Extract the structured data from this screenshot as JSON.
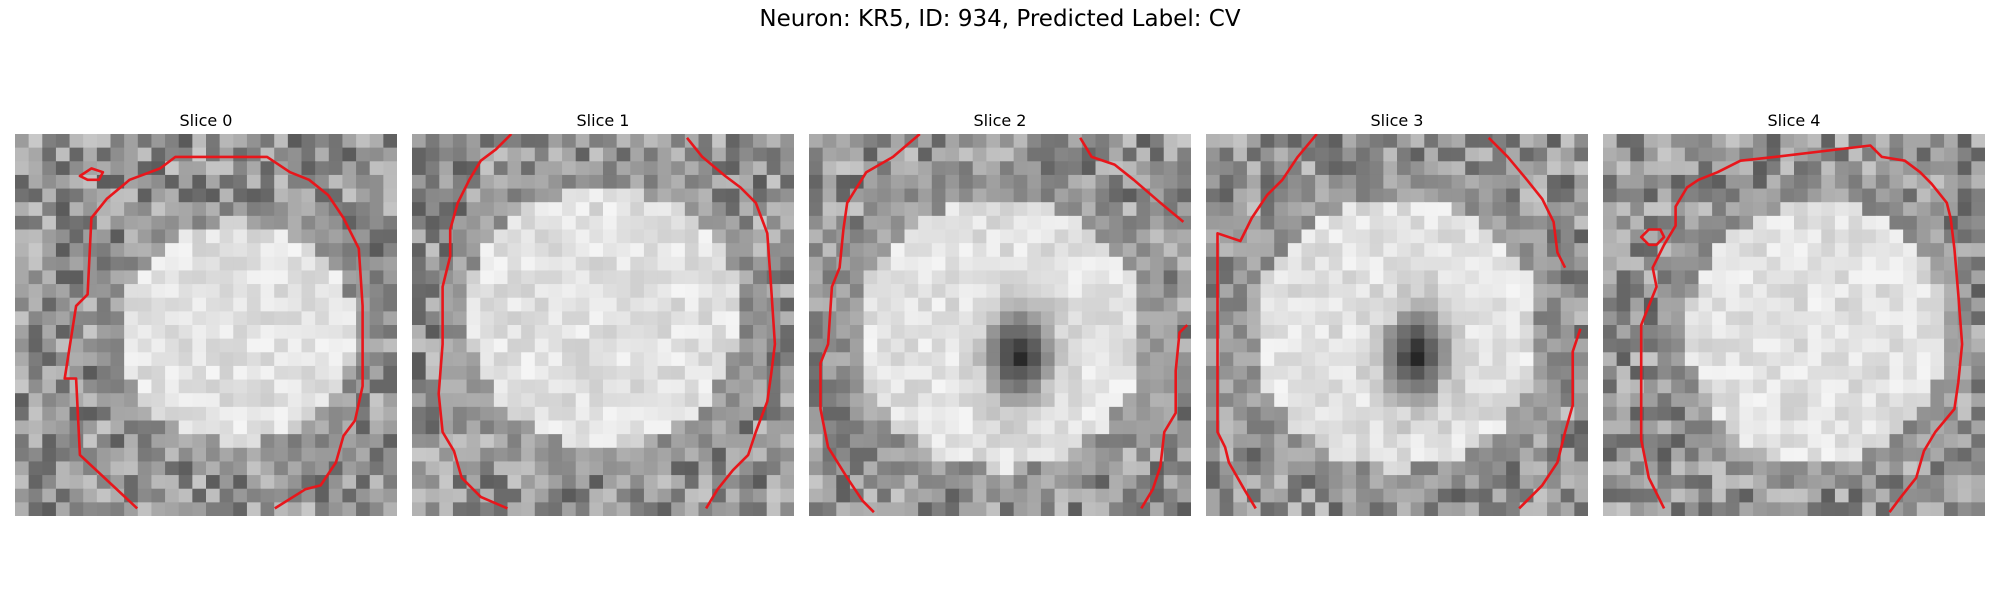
{
  "figure": {
    "title": "Neuron: KR5, ID: 934, Predicted Label: CV"
  },
  "slices": [
    {
      "title": "Slice 0",
      "has_dark_center": false
    },
    {
      "title": "Slice 1",
      "has_dark_center": false
    },
    {
      "title": "Slice 2",
      "has_dark_center": true
    },
    {
      "title": "Slice 3",
      "has_dark_center": true
    },
    {
      "title": "Slice 4",
      "has_dark_center": false
    }
  ],
  "colors": {
    "contour": "#e8161b",
    "background": "#ffffff"
  }
}
